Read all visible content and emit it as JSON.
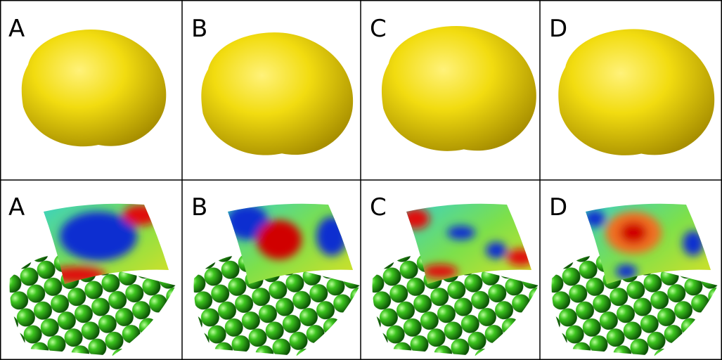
{
  "top_row": {
    "labels": [
      "A",
      "B",
      "C",
      "D"
    ]
  },
  "bottom_row": {
    "labels": [
      "A",
      "B",
      "C",
      "D"
    ]
  }
}
